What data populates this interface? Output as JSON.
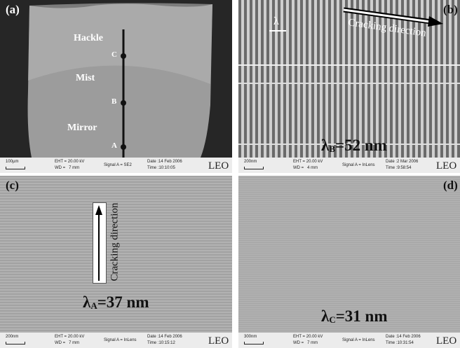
{
  "panels": [
    {
      "label": "(a)",
      "annotations": [
        "Hackle",
        "Mist",
        "Mirror"
      ],
      "points": [
        "C",
        "B",
        "A"
      ],
      "info": {
        "scale": "100µm",
        "eht": "EHT = 20.00 kV",
        "wd": "WD =   7 mm",
        "signal": "Signal A = SE2",
        "date": "Date :14 Feb 2006",
        "time": "Time :10:10:05",
        "logo": "LEO"
      }
    },
    {
      "label": "(b)",
      "lambda": "λ",
      "direction": "Cracking direction",
      "wavelength": {
        "symbol": "λ",
        "sub": "B",
        "value": "=52 nm"
      },
      "info": {
        "scale": "200nm",
        "eht": "EHT = 20.00 kV",
        "wd": "WD =   4 mm",
        "signal": "Signal A = InLens",
        "date": "Date :2 Mar 2006",
        "time": "Time :9:58:54",
        "logo": "LEO"
      }
    },
    {
      "label": "(c)",
      "direction": "Cracking direction",
      "wavelength": {
        "symbol": "λ",
        "sub": "A",
        "value": "=37 nm"
      },
      "info": {
        "scale": "200nm",
        "eht": "EHT = 20.00 kV",
        "wd": "WD =   7 mm",
        "signal": "Signal A = InLens",
        "date": "Date :14 Feb 2006",
        "time": "Time :10:15:12",
        "logo": "LEO"
      }
    },
    {
      "label": "(d)",
      "wavelength": {
        "symbol": "λ",
        "sub": "C",
        "value": "=31 nm"
      },
      "info": {
        "scale": "300nm",
        "eht": "EHT = 20.00 kV",
        "wd": "WD =   7 mm",
        "signal": "Signal A = InLens",
        "date": "Date :14 Feb 2006",
        "time": "Time :10:31:54",
        "logo": "LEO"
      }
    }
  ]
}
